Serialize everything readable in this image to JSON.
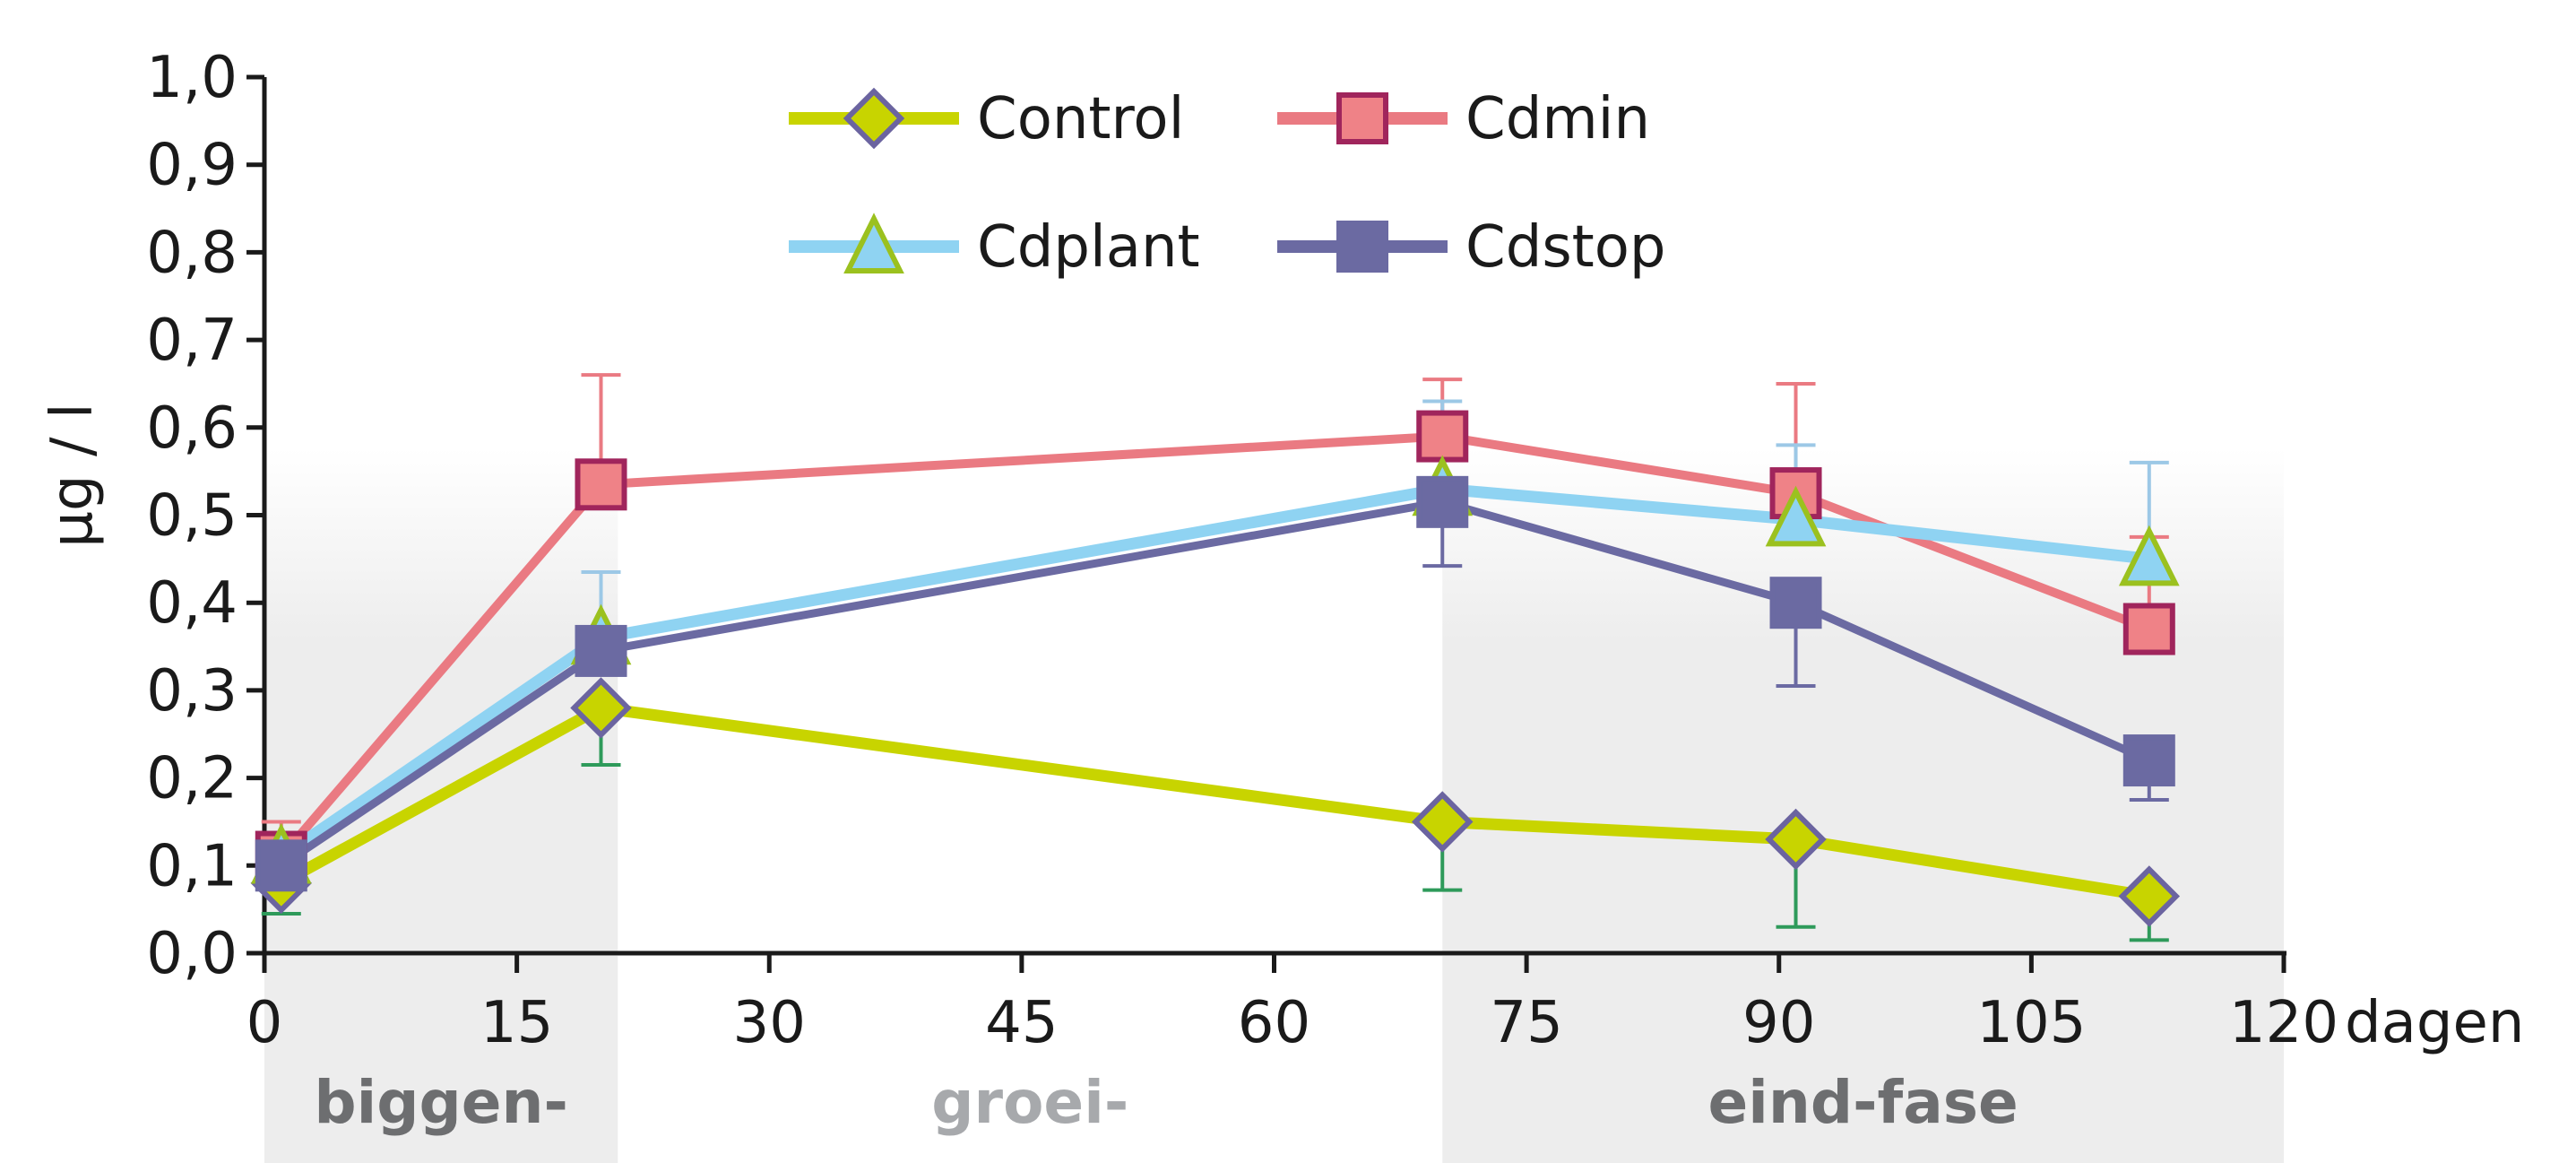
{
  "chart_data": {
    "type": "line",
    "title": "",
    "xlabel": "dagen",
    "ylabel": "µg / l",
    "xlim": [
      0,
      120
    ],
    "ylim": [
      0,
      1.0
    ],
    "x_ticks": [
      "0",
      "15",
      "30",
      "45",
      "60",
      "75",
      "90",
      "105",
      "120"
    ],
    "y_ticks": [
      "0,0",
      "0,1",
      "0,2",
      "0,3",
      "0,4",
      "0,5",
      "0,6",
      "0,7",
      "0,8",
      "0,9",
      "1,0"
    ],
    "grid": false,
    "legend_position": "top",
    "phases": [
      {
        "label": "biggen-",
        "x_start": 0,
        "x_end": 21,
        "shaded": true,
        "label_color": "#6d6e70"
      },
      {
        "label": "groei-",
        "x_start": 21,
        "x_end": 70,
        "shaded": false,
        "label_color": "#a7a9ac"
      },
      {
        "label": "eind-fase",
        "x_start": 70,
        "x_end": 120,
        "shaded": true,
        "label_color": "#6d6e70"
      }
    ],
    "series": [
      {
        "name": "Control",
        "marker": "diamond",
        "line_color": "#c8d400",
        "marker_fill": "#c8d400",
        "marker_edge": "#6b64a0",
        "error_color": "#2e9a5a",
        "x": [
          1,
          20,
          70,
          91,
          112
        ],
        "y": [
          0.08,
          0.28,
          0.15,
          0.13,
          0.065
        ],
        "err_low": [
          0.035,
          0.065,
          0.078,
          0.1,
          0.05
        ],
        "err_high": [
          0,
          0,
          0,
          0,
          0
        ]
      },
      {
        "name": "Cdmin",
        "marker": "square",
        "line_color": "#ea7a82",
        "marker_fill": "#ef8287",
        "marker_edge": "#a0255c",
        "error_color": "#ea7a82",
        "x": [
          1,
          20,
          70,
          91,
          112
        ],
        "y": [
          0.11,
          0.535,
          0.59,
          0.525,
          0.37
        ],
        "err_low": [
          0,
          0,
          0,
          0,
          0
        ],
        "err_high": [
          0.04,
          0.125,
          0.065,
          0.125,
          0.105
        ]
      },
      {
        "name": "Cdplant",
        "marker": "triangle",
        "line_color": "#8fd3f2",
        "marker_fill": "#8fd3f2",
        "marker_edge": "#9bc11f",
        "error_color": "#9cc8e6",
        "x": [
          1,
          20,
          70,
          91,
          112
        ],
        "y": [
          0.11,
          0.36,
          0.53,
          0.495,
          0.45
        ],
        "err_low": [
          0,
          0,
          0,
          0,
          0
        ],
        "err_high": [
          0.02,
          0.075,
          0.1,
          0.085,
          0.11
        ]
      },
      {
        "name": "Cdstop",
        "marker": "square",
        "line_color": "#6b6aa2",
        "marker_fill": "#6b6aa2",
        "marker_edge": "#6b6aa2",
        "error_color": "#6b6aa2",
        "x": [
          1,
          20,
          70,
          91,
          112
        ],
        "y": [
          0.1,
          0.345,
          0.515,
          0.4,
          0.22
        ],
        "err_low": [
          0,
          0,
          0.073,
          0.095,
          0.045
        ],
        "err_high": [
          0,
          0,
          0,
          0,
          0
        ]
      }
    ]
  }
}
